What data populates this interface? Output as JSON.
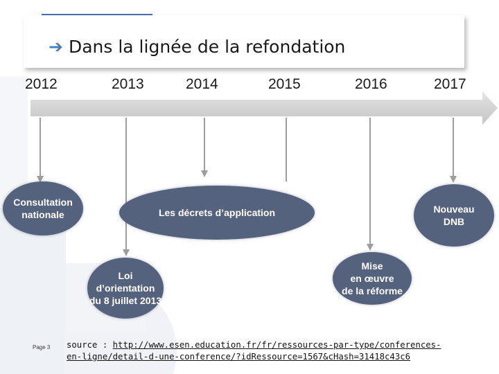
{
  "slide": {
    "title": "Dans la lignée de la refondation",
    "title_arrow_icon": "right-arrow-icon",
    "page_label": "Page 3",
    "source_prefix": "source : ",
    "source_url": "http://www.esen.education.fr/fr/ressources-par-type/conferences-en-ligne/detail-d-une-conference/?idRessource=1567&cHash=31418c43c6"
  },
  "timeline": {
    "years": [
      "2012",
      "2013",
      "2014",
      "2015",
      "2016",
      "2017"
    ],
    "events": [
      {
        "label": "Consultation\nnationale",
        "year": "2012"
      },
      {
        "label": "Loi\nd’orientation\ndu 8 juillet 2013",
        "year": "2013"
      },
      {
        "label": "Les décrets d’application",
        "year": "2014"
      },
      {
        "label": "Mise\nen œuvre\nde la réforme",
        "year": "2016"
      },
      {
        "label": "Nouveau\nDNB",
        "year": "2017"
      }
    ]
  },
  "colors": {
    "node_fill": "#55627e",
    "timeline_bar": "#d3d3d3",
    "title_accent": "#4a6fb0"
  }
}
